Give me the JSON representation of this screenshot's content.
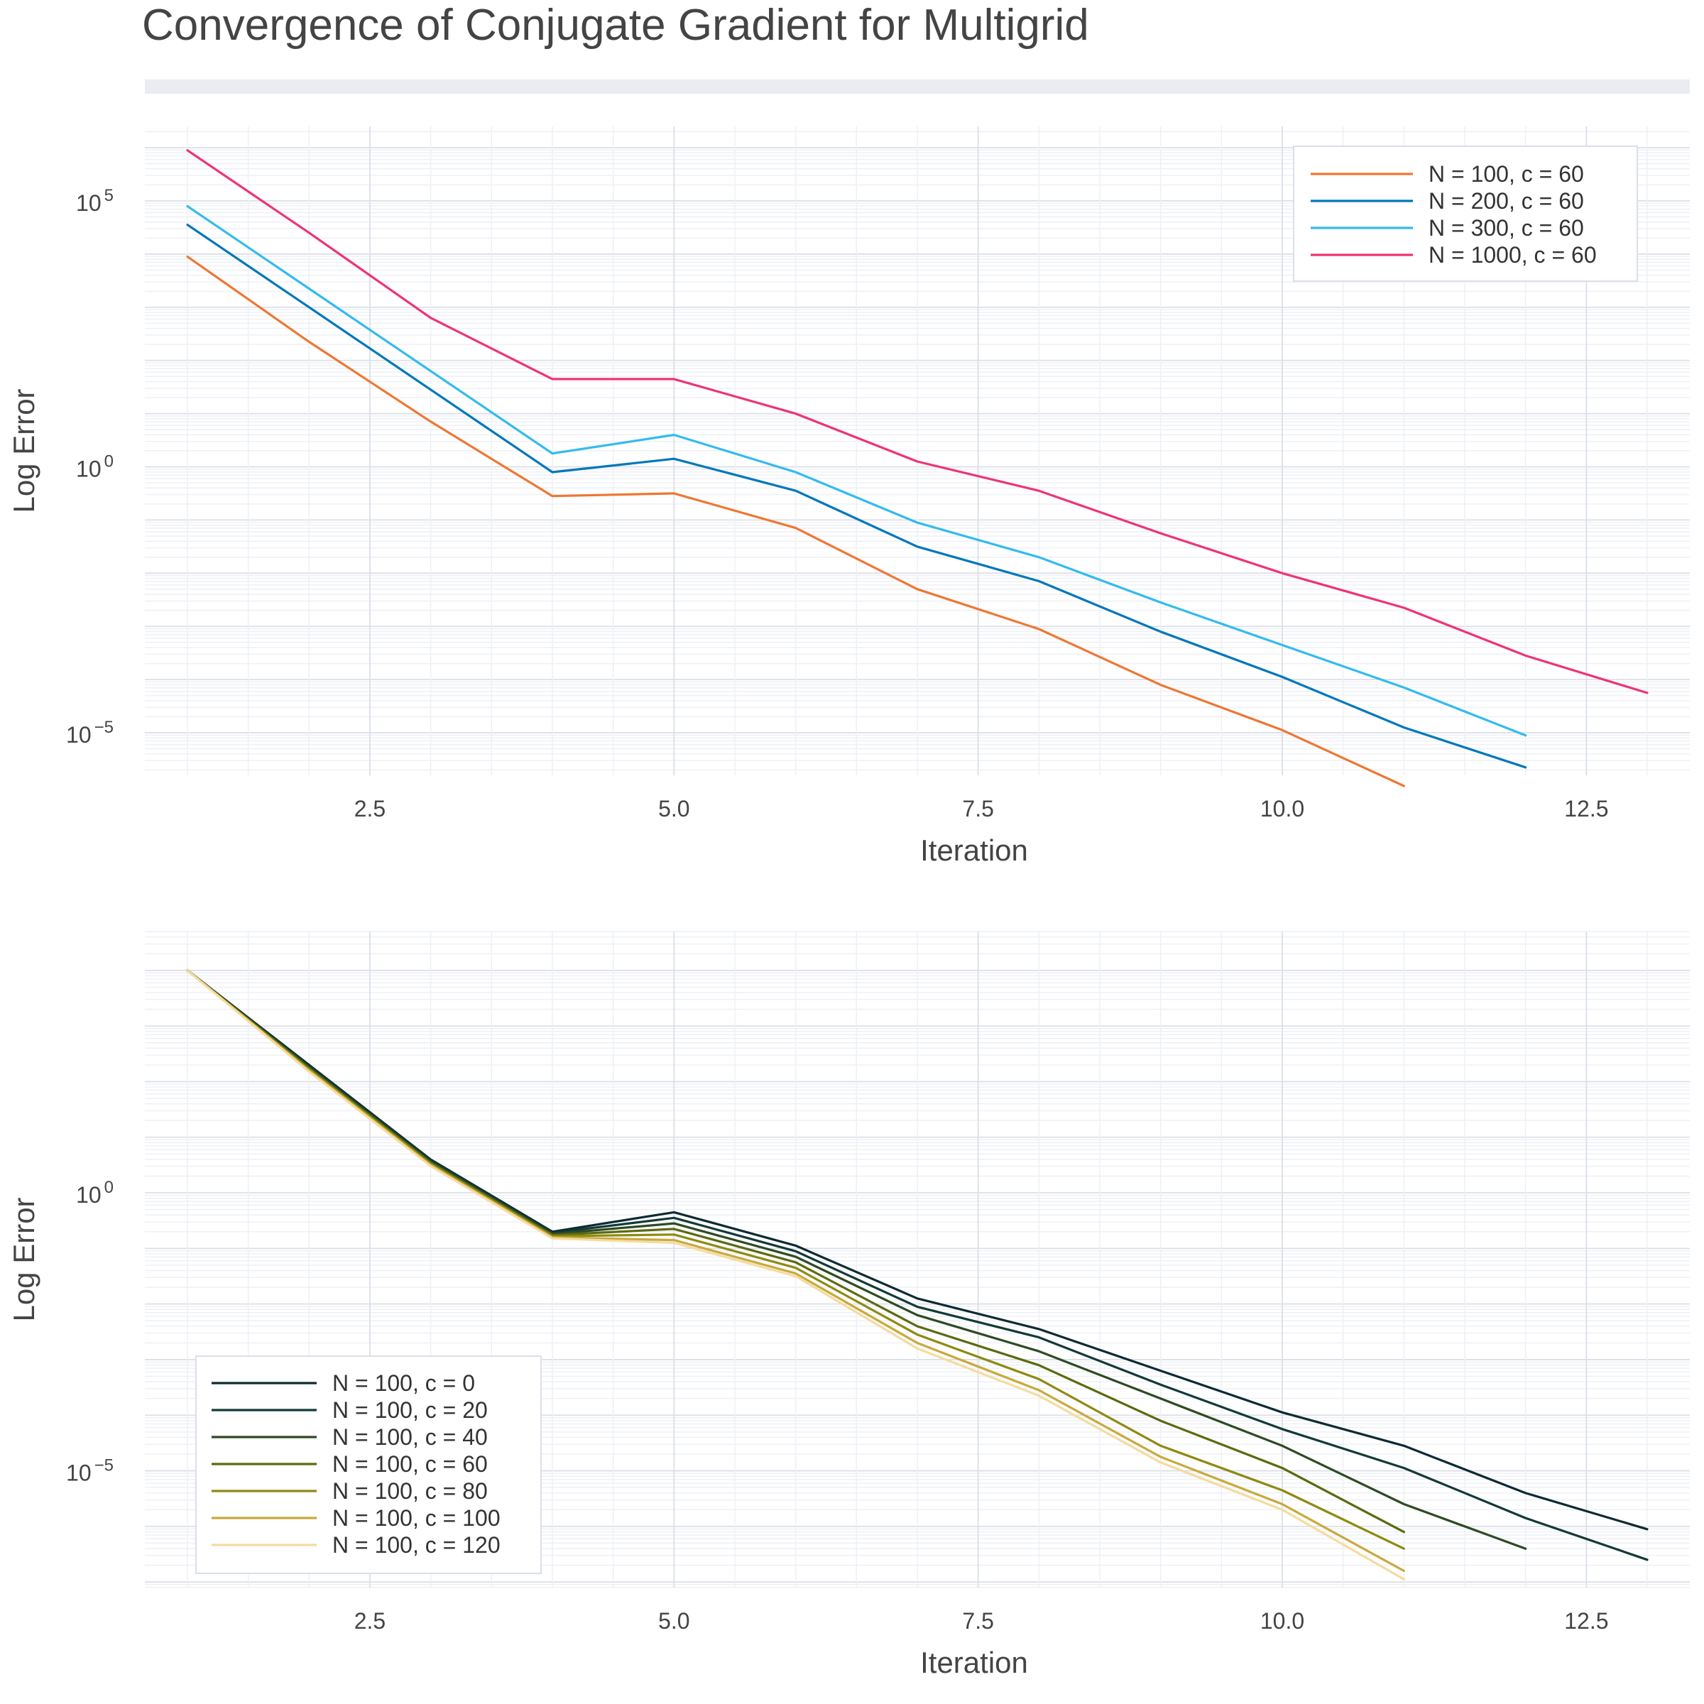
{
  "figure": {
    "title": "Convergence of Conjugate Gradient for Multigrid"
  },
  "chart_data": [
    {
      "type": "line",
      "title": "",
      "xlabel": "Iteration",
      "ylabel": "Log Error",
      "xscale": "linear",
      "yscale": "log",
      "xlim": [
        0.65,
        13.35
      ],
      "ylim_exponent": [
        -5.8,
        6.4
      ],
      "xticks": [
        2.5,
        5.0,
        7.5,
        10.0,
        12.5
      ],
      "xtick_labels": [
        "2.5",
        "5.0",
        "7.5",
        "10.0",
        "12.5"
      ],
      "yticks": [
        {
          "base": "10",
          "exp": "5",
          "value_exp": 5
        },
        {
          "base": "10",
          "exp": "0",
          "value_exp": 0
        },
        {
          "base": "10",
          "exp": "−5",
          "value_exp": -5
        }
      ],
      "grid": true,
      "legend_position": "upper right",
      "series": [
        {
          "name": "N = 100, c = 60",
          "color": "#ee7733",
          "x": [
            1,
            2,
            3,
            4,
            5,
            6,
            7,
            8,
            9,
            10,
            11
          ],
          "y_exponent": [
            3.95,
            2.35,
            0.85,
            -0.55,
            -0.5,
            -1.15,
            -2.3,
            -3.05,
            -4.1,
            -4.95,
            -6.0
          ]
        },
        {
          "name": "N = 200, c = 60",
          "color": "#0077bb",
          "x": [
            1,
            2,
            3,
            4,
            5,
            6,
            7,
            8,
            9,
            10,
            11,
            12
          ],
          "y_exponent": [
            4.55,
            3.0,
            1.45,
            -0.1,
            0.15,
            -0.45,
            -1.5,
            -2.15,
            -3.1,
            -3.95,
            -4.9,
            -5.65
          ]
        },
        {
          "name": "N = 300, c = 60",
          "color": "#33bbee",
          "x": [
            1,
            2,
            3,
            4,
            5,
            6,
            7,
            8,
            9,
            10,
            11,
            12
          ],
          "y_exponent": [
            4.9,
            3.35,
            1.8,
            0.25,
            0.6,
            -0.1,
            -1.05,
            -1.7,
            -2.55,
            -3.35,
            -4.15,
            -5.05
          ]
        },
        {
          "name": "N = 1000, c = 60",
          "color": "#ee3377",
          "x": [
            1,
            2,
            3,
            4,
            5,
            6,
            7,
            8,
            9,
            10,
            11,
            12,
            13
          ],
          "y_exponent": [
            5.95,
            4.4,
            2.8,
            1.65,
            1.65,
            1.0,
            0.1,
            -0.45,
            -1.25,
            -2.0,
            -2.65,
            -3.55,
            -4.25
          ]
        }
      ]
    },
    {
      "type": "line",
      "title": "",
      "xlabel": "Iteration",
      "ylabel": "Log Error",
      "xscale": "linear",
      "yscale": "log",
      "xlim": [
        0.65,
        13.35
      ],
      "ylim_exponent": [
        -7.1,
        4.7
      ],
      "xticks": [
        2.5,
        5.0,
        7.5,
        10.0,
        12.5
      ],
      "xtick_labels": [
        "2.5",
        "5.0",
        "7.5",
        "10.0",
        "12.5"
      ],
      "yticks": [
        {
          "base": "10",
          "exp": "0",
          "value_exp": 0
        },
        {
          "base": "10",
          "exp": "−5",
          "value_exp": -5
        }
      ],
      "grid": true,
      "legend_position": "lower left",
      "series": [
        {
          "name": "N = 100, c = 0",
          "color": "#0d2a33",
          "x": [
            1,
            2,
            3,
            4,
            5,
            6,
            7,
            8,
            9,
            10,
            11,
            12,
            13
          ],
          "y_exponent": [
            4.0,
            2.3,
            0.6,
            -0.7,
            -0.35,
            -0.95,
            -1.9,
            -2.45,
            -3.2,
            -3.95,
            -4.55,
            -5.4,
            -6.05
          ]
        },
        {
          "name": "N = 100, c = 20",
          "color": "#123a38",
          "x": [
            1,
            2,
            3,
            4,
            5,
            6,
            7,
            8,
            9,
            10,
            11,
            12,
            13
          ],
          "y_exponent": [
            4.0,
            2.28,
            0.58,
            -0.72,
            -0.45,
            -1.05,
            -2.05,
            -2.6,
            -3.45,
            -4.25,
            -4.95,
            -5.85,
            -6.6
          ]
        },
        {
          "name": "N = 100, c = 40",
          "color": "#2e4a22",
          "x": [
            1,
            2,
            3,
            4,
            5,
            6,
            7,
            8,
            9,
            10,
            11,
            12
          ],
          "y_exponent": [
            4.0,
            2.26,
            0.56,
            -0.74,
            -0.55,
            -1.15,
            -2.2,
            -2.85,
            -3.7,
            -4.55,
            -5.6,
            -6.4
          ]
        },
        {
          "name": "N = 100, c = 60",
          "color": "#5b6a10",
          "x": [
            1,
            2,
            3,
            4,
            5,
            6,
            7,
            8,
            9,
            10,
            11
          ],
          "y_exponent": [
            4.0,
            2.24,
            0.54,
            -0.76,
            -0.65,
            -1.25,
            -2.4,
            -3.1,
            -4.1,
            -4.95,
            -6.1
          ]
        },
        {
          "name": "N = 100, c = 80",
          "color": "#8e8a12",
          "x": [
            1,
            2,
            3,
            4,
            5,
            6,
            7,
            8,
            9,
            10,
            11
          ],
          "y_exponent": [
            4.0,
            2.22,
            0.52,
            -0.78,
            -0.75,
            -1.35,
            -2.55,
            -3.35,
            -4.55,
            -5.35,
            -6.4
          ]
        },
        {
          "name": "N = 100, c = 100",
          "color": "#c9a93c",
          "x": [
            1,
            2,
            3,
            4,
            5,
            6,
            7,
            8,
            9,
            10,
            11
          ],
          "y_exponent": [
            4.0,
            2.2,
            0.5,
            -0.8,
            -0.85,
            -1.45,
            -2.7,
            -3.55,
            -4.75,
            -5.6,
            -6.8
          ]
        },
        {
          "name": "N = 100, c = 120",
          "color": "#f5dba0",
          "x": [
            1,
            2,
            3,
            4,
            5,
            6,
            7,
            8,
            9,
            10,
            11
          ],
          "y_exponent": [
            4.0,
            2.18,
            0.48,
            -0.82,
            -0.9,
            -1.5,
            -2.8,
            -3.65,
            -4.85,
            -5.7,
            -6.95
          ]
        }
      ]
    }
  ]
}
